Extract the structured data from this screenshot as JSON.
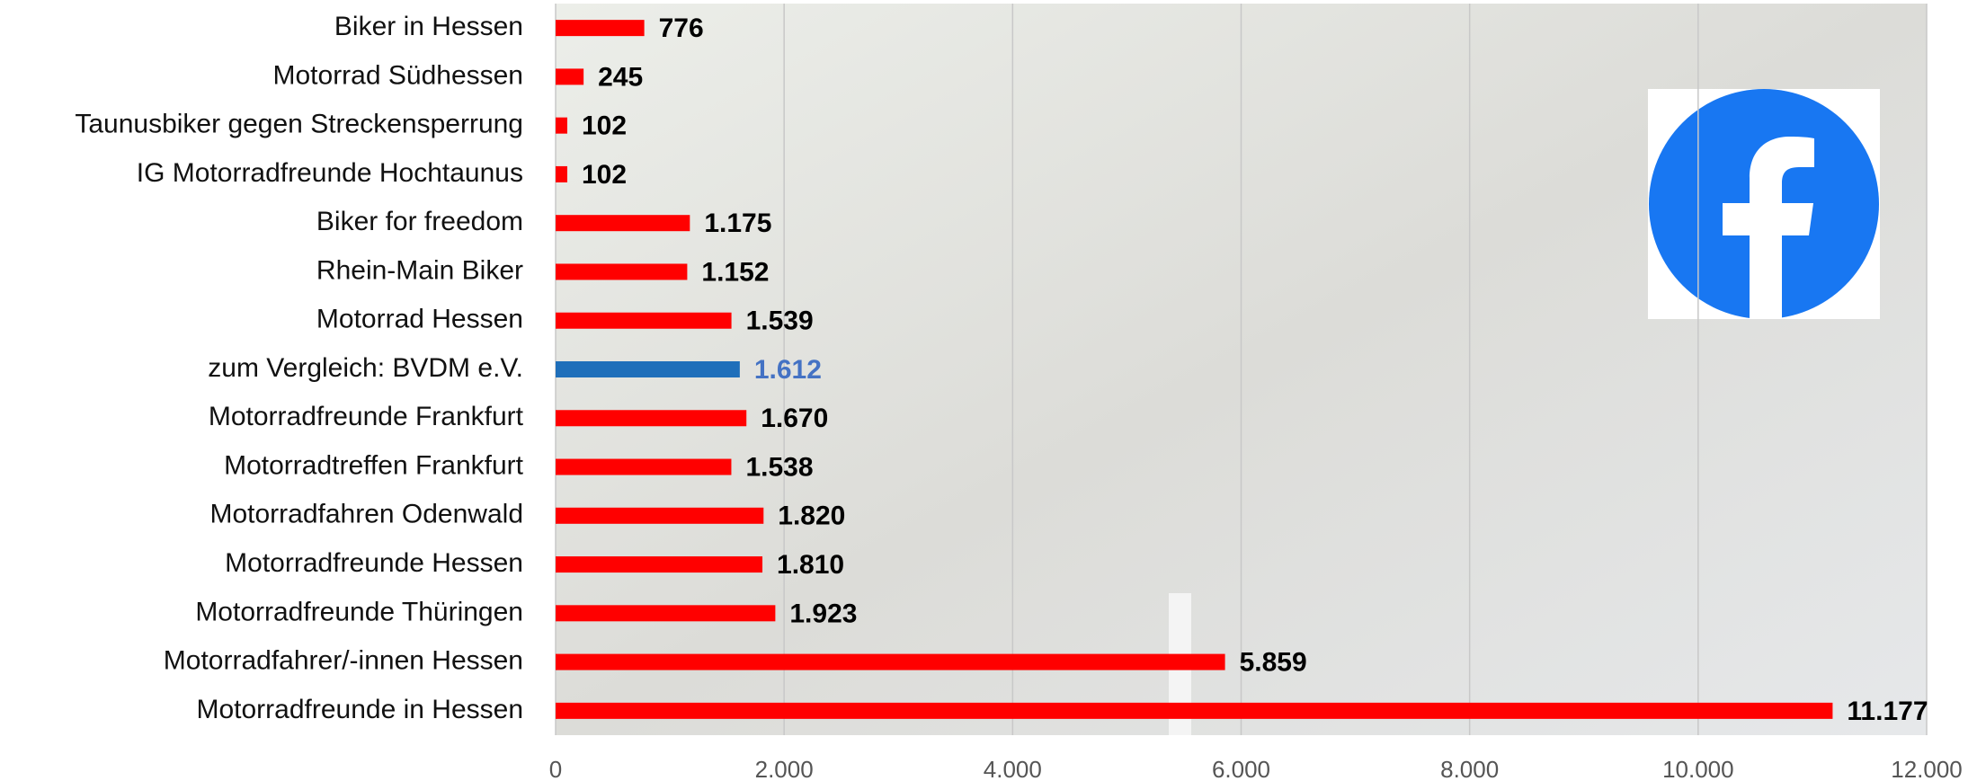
{
  "chart_data": {
    "type": "hbar",
    "categories": [
      "Biker in Hessen",
      "Motorrad Südhessen",
      "Taunusbiker gegen Streckensperrung",
      "IG Motorradfreunde Hochtaunus",
      "Biker for freedom",
      "Rhein-Main Biker",
      "Motorrad Hessen",
      "zum Vergleich: BVDM e.V.",
      "Motorradfreunde Frankfurt",
      "Motorradtreffen Frankfurt",
      "Motorradfahren Odenwald",
      "Motorradfreunde Hessen",
      "Motorradfreunde Thüringen",
      "Motorradfahrer/-innen Hessen",
      "Motorradfreunde in Hessen"
    ],
    "values": [
      776,
      245,
      102,
      102,
      1175,
      1152,
      1539,
      1612,
      1670,
      1538,
      1820,
      1810,
      1923,
      5859,
      11177
    ],
    "value_labels": [
      "776",
      "245",
      "102",
      "102",
      "1.175",
      "1.152",
      "1.539",
      "1.612",
      "1.670",
      "1.538",
      "1.820",
      "1.810",
      "1.923",
      "5.859",
      "11.177"
    ],
    "colors": [
      "#ff0000",
      "#ff0000",
      "#ff0000",
      "#ff0000",
      "#ff0000",
      "#ff0000",
      "#ff0000",
      "#1f6fba",
      "#ff0000",
      "#ff0000",
      "#ff0000",
      "#ff0000",
      "#ff0000",
      "#ff0000",
      "#ff0000"
    ],
    "value_label_colors": [
      "#000000",
      "#000000",
      "#000000",
      "#000000",
      "#000000",
      "#000000",
      "#000000",
      "#4472c4",
      "#000000",
      "#000000",
      "#000000",
      "#000000",
      "#000000",
      "#000000",
      "#000000"
    ],
    "xlim": [
      0,
      12000
    ],
    "xticks": [
      0,
      {
        "value": 2000,
        "label": "2.000"
      },
      {
        "value": 4000,
        "label": "4.000"
      },
      {
        "value": 6000,
        "label": "6.000"
      },
      {
        "value": 8000,
        "label": "8.000"
      },
      {
        "value": 10000,
        "label": "10.000"
      },
      {
        "value": 12000,
        "label": "12.000"
      }
    ],
    "grid": true
  }
}
